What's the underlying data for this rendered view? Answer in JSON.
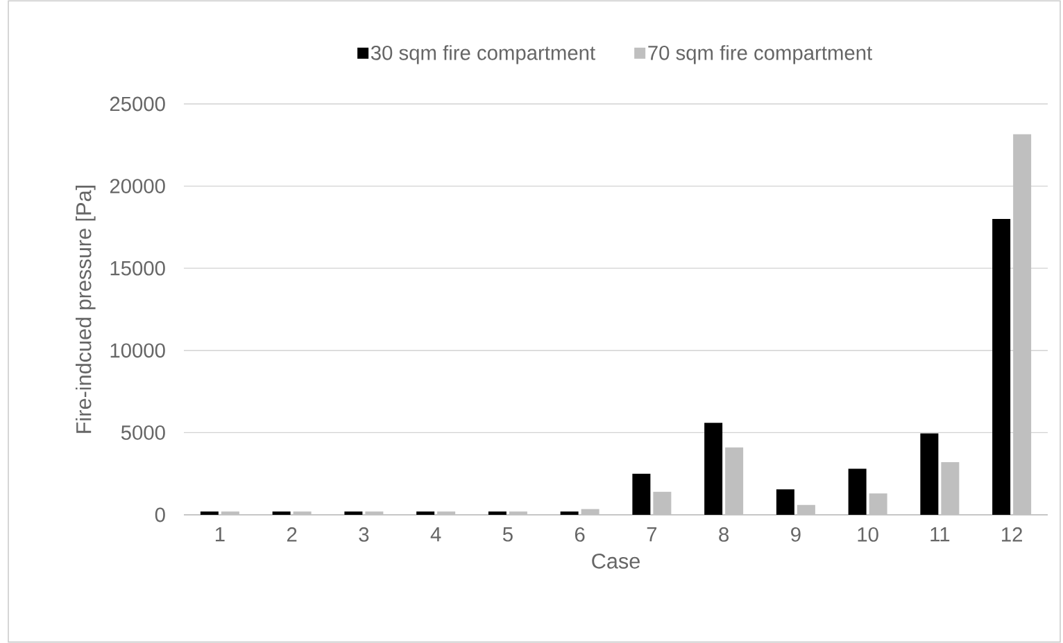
{
  "chart_data": {
    "type": "bar",
    "xlabel": "Case",
    "ylabel": "Fire-indcued pressure [Pa]",
    "categories": [
      "1",
      "2",
      "3",
      "4",
      "5",
      "6",
      "7",
      "8",
      "9",
      "10",
      "11",
      "12"
    ],
    "series": [
      {
        "name": "30 sqm fire compartment",
        "color": "#000000",
        "values": [
          200,
          200,
          200,
          200,
          200,
          200,
          2500,
          5600,
          1550,
          2800,
          4950,
          18000
        ]
      },
      {
        "name": "70 sqm fire compartment",
        "color": "#bfbfbf",
        "values": [
          200,
          200,
          200,
          200,
          200,
          350,
          1400,
          4100,
          600,
          1300,
          3200,
          23150
        ]
      }
    ],
    "ylim": [
      0,
      25000
    ],
    "yticks": [
      0,
      5000,
      10000,
      15000,
      20000,
      25000
    ],
    "grid": "y",
    "legend": "top"
  }
}
